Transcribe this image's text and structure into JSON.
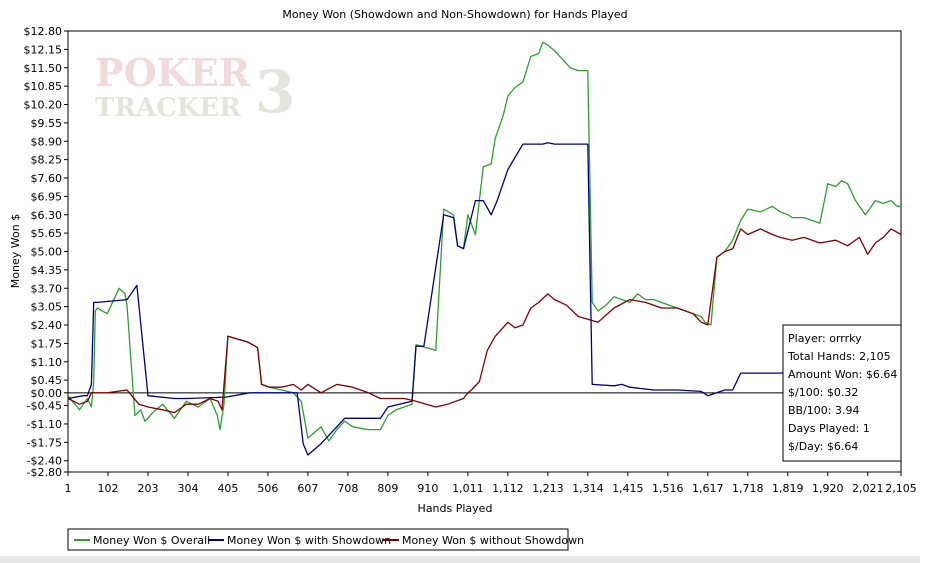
{
  "chart_data": {
    "type": "line",
    "title": "Money Won (Showdown and Non-Showdown) for Hands Played",
    "xlabel": "Hands Played",
    "ylabel": "Money Won $",
    "xlim": [
      1,
      2105
    ],
    "ylim": [
      -2.8,
      12.8
    ],
    "x_ticks": [
      1,
      102,
      203,
      304,
      405,
      506,
      607,
      708,
      809,
      910,
      1011,
      1112,
      1213,
      1314,
      1415,
      1516,
      1617,
      1718,
      1819,
      1920,
      2021,
      2105
    ],
    "x_tick_labels": [
      "1",
      "102",
      "203",
      "304",
      "405",
      "506",
      "607",
      "708",
      "809",
      "910",
      "1,011",
      "1,112",
      "1,213",
      "1,314",
      "1,415",
      "1,516",
      "1,617",
      "1,718",
      "1,819",
      "1,920",
      "2,021",
      "2,105"
    ],
    "y_ticks": [
      -2.8,
      -2.4,
      -1.75,
      -1.1,
      -0.45,
      0,
      0.45,
      1.1,
      1.75,
      2.4,
      3.05,
      3.7,
      4.35,
      5.0,
      5.65,
      6.3,
      6.95,
      7.6,
      8.25,
      8.9,
      9.55,
      10.2,
      10.85,
      11.5,
      12.15,
      12.8
    ],
    "y_tick_labels": [
      "-$2.80",
      "-$2.40",
      "-$1.75",
      "-$1.10",
      "-$0.45",
      "$0.00",
      "$0.45",
      "$1.10",
      "$1.75",
      "$2.40",
      "$3.05",
      "$3.70",
      "$4.35",
      "$5.00",
      "$5.65",
      "$6.30",
      "$6.95",
      "$7.60",
      "$8.25",
      "$8.90",
      "$9.55",
      "$10.20",
      "$10.85",
      "$11.50",
      "$12.15",
      "$12.80"
    ],
    "grid": false,
    "legend_position": "bottom-left",
    "series": [
      {
        "name": "Money Won $ Overall",
        "color": "#2ca02c",
        "x": [
          1,
          30,
          50,
          60,
          66,
          70,
          75,
          100,
          130,
          145,
          150,
          170,
          185,
          195,
          203,
          215,
          240,
          270,
          300,
          330,
          360,
          378,
          385,
          395,
          405,
          430,
          455,
          480,
          490,
          510,
          540,
          570,
          590,
          607,
          640,
          660,
          680,
          700,
          720,
          760,
          790,
          809,
          830,
          850,
          870,
          880,
          930,
          950,
          975,
          985,
          1000,
          1011,
          1030,
          1050,
          1070,
          1080,
          1100,
          1112,
          1130,
          1150,
          1170,
          1190,
          1200,
          1213,
          1230,
          1250,
          1270,
          1290,
          1314,
          1325,
          1340,
          1360,
          1380,
          1400,
          1420,
          1440,
          1460,
          1480,
          1500,
          1520,
          1540,
          1560,
          1580,
          1600,
          1610,
          1625,
          1640,
          1660,
          1680,
          1700,
          1718,
          1750,
          1780,
          1800,
          1820,
          1830,
          1860,
          1880,
          1900,
          1920,
          1940,
          1955,
          1970,
          1990,
          2000,
          2015,
          2021,
          2040,
          2060,
          2080,
          2095,
          2105
        ],
        "y": [
          -0.1,
          -0.6,
          -0.2,
          -0.5,
          0.4,
          2.9,
          3.0,
          2.8,
          3.7,
          3.5,
          3.1,
          -0.8,
          -0.6,
          -1.0,
          -0.9,
          -0.7,
          -0.4,
          -0.9,
          -0.3,
          -0.5,
          -0.2,
          -0.8,
          -1.3,
          -0.4,
          2.0,
          1.9,
          1.8,
          1.6,
          0.3,
          0.2,
          0.1,
          0.0,
          -0.3,
          -1.6,
          -1.2,
          -1.7,
          -1.3,
          -1.0,
          -1.2,
          -1.3,
          -1.3,
          -0.8,
          -0.6,
          -0.5,
          -0.4,
          1.7,
          1.5,
          6.5,
          6.3,
          5.2,
          5.1,
          6.3,
          5.6,
          8.0,
          8.1,
          9.0,
          9.8,
          10.5,
          10.8,
          11.0,
          11.9,
          12.0,
          12.4,
          12.3,
          12.1,
          11.8,
          11.5,
          11.4,
          11.4,
          3.2,
          2.9,
          3.1,
          3.4,
          3.3,
          3.2,
          3.5,
          3.3,
          3.3,
          3.2,
          3.1,
          3.0,
          2.9,
          2.8,
          2.7,
          2.5,
          2.4,
          4.8,
          5.0,
          5.4,
          6.1,
          6.5,
          6.4,
          6.6,
          6.4,
          6.3,
          6.2,
          6.2,
          6.1,
          6.0,
          7.4,
          7.3,
          7.5,
          7.4,
          6.8,
          6.6,
          6.3,
          6.4,
          6.8,
          6.7,
          6.8,
          6.6,
          6.6
        ]
      },
      {
        "name": "Money Won $ with Showdown",
        "color": "#000080",
        "x": [
          1,
          40,
          50,
          60,
          66,
          75,
          150,
          175,
          203,
          270,
          300,
          400,
          460,
          520,
          560,
          580,
          595,
          607,
          640,
          660,
          680,
          700,
          760,
          790,
          809,
          870,
          880,
          900,
          950,
          975,
          985,
          1000,
          1030,
          1050,
          1070,
          1085,
          1112,
          1150,
          1200,
          1213,
          1230,
          1300,
          1314,
          1325,
          1380,
          1400,
          1420,
          1480,
          1540,
          1600,
          1617,
          1660,
          1680,
          1700,
          1718,
          1800,
          1900,
          2000,
          2105
        ],
        "y": [
          -0.2,
          -0.1,
          -0.1,
          0.3,
          3.2,
          3.2,
          3.3,
          3.8,
          -0.1,
          -0.2,
          -0.2,
          -0.15,
          0.0,
          0.0,
          0.0,
          0.0,
          -1.8,
          -2.2,
          -1.8,
          -1.5,
          -1.2,
          -0.9,
          -0.9,
          -0.9,
          -0.5,
          -0.3,
          1.65,
          1.65,
          6.3,
          6.2,
          5.2,
          5.1,
          6.8,
          6.8,
          6.3,
          6.8,
          7.9,
          8.8,
          8.8,
          8.85,
          8.8,
          8.8,
          8.8,
          0.3,
          0.25,
          0.3,
          0.2,
          0.1,
          0.1,
          0.05,
          -0.1,
          0.1,
          0.1,
          0.7,
          0.7,
          0.7,
          0.8,
          0.9,
          1.1
        ]
      },
      {
        "name": "Money Won $ without Showdown",
        "color": "#800000",
        "x": [
          1,
          30,
          50,
          60,
          100,
          150,
          180,
          203,
          240,
          270,
          300,
          330,
          360,
          380,
          390,
          405,
          430,
          455,
          480,
          490,
          510,
          540,
          570,
          590,
          607,
          640,
          680,
          720,
          760,
          790,
          809,
          850,
          880,
          930,
          960,
          1000,
          1011,
          1020,
          1040,
          1060,
          1080,
          1112,
          1130,
          1150,
          1170,
          1190,
          1213,
          1230,
          1260,
          1290,
          1314,
          1340,
          1380,
          1420,
          1460,
          1500,
          1540,
          1580,
          1600,
          1617,
          1640,
          1660,
          1680,
          1700,
          1718,
          1750,
          1780,
          1800,
          1830,
          1860,
          1900,
          1940,
          1970,
          2000,
          2021,
          2040,
          2060,
          2080,
          2105
        ],
        "y": [
          -0.2,
          -0.4,
          -0.3,
          0.0,
          0.0,
          0.1,
          -0.4,
          -0.5,
          -0.6,
          -0.7,
          -0.4,
          -0.4,
          -0.2,
          -0.3,
          -0.6,
          2.0,
          1.9,
          1.8,
          1.6,
          0.3,
          0.2,
          0.2,
          0.3,
          0.1,
          0.3,
          0.0,
          0.3,
          0.2,
          0.0,
          -0.2,
          -0.2,
          -0.2,
          -0.3,
          -0.5,
          -0.4,
          -0.2,
          0.0,
          0.1,
          0.4,
          1.5,
          2.0,
          2.5,
          2.3,
          2.4,
          3.0,
          3.2,
          3.5,
          3.3,
          3.1,
          2.7,
          2.6,
          2.5,
          3.0,
          3.3,
          3.2,
          3.0,
          3.0,
          2.8,
          2.5,
          2.4,
          4.8,
          5.0,
          5.1,
          5.8,
          5.6,
          5.8,
          5.6,
          5.5,
          5.4,
          5.5,
          5.3,
          5.4,
          5.2,
          5.5,
          4.9,
          5.3,
          5.5,
          5.8,
          5.6
        ]
      }
    ]
  },
  "info_box": {
    "player": "Player: orrrky",
    "total_hands": "Total Hands: 2,105",
    "amount_won": "Amount Won: $6.64",
    "per_100": "$/100: $0.32",
    "bb_per_100": "BB/100: 3.94",
    "days_played": "Days Played: 1",
    "per_day": "$/Day: $6.64"
  },
  "watermark": {
    "line1": "POKER",
    "line2": "TRACKER",
    "digit": "3"
  }
}
